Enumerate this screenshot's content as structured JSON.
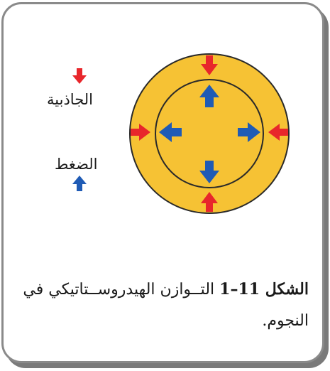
{
  "colors": {
    "star_fill": "#f6c234",
    "outline": "#2a2a2a",
    "gravity_arrow": "#e8262b",
    "pressure_arrow": "#1f5bb5"
  },
  "legend": {
    "gravity_label": "الجاذبية",
    "pressure_label": "الضغط",
    "gravity_icon": "red-arrow-down",
    "pressure_icon": "blue-arrow-up"
  },
  "caption": {
    "figure_label": "الشكل 11–1",
    "text": " التــوازن الهيدروســتاتيكي في النجوم."
  }
}
